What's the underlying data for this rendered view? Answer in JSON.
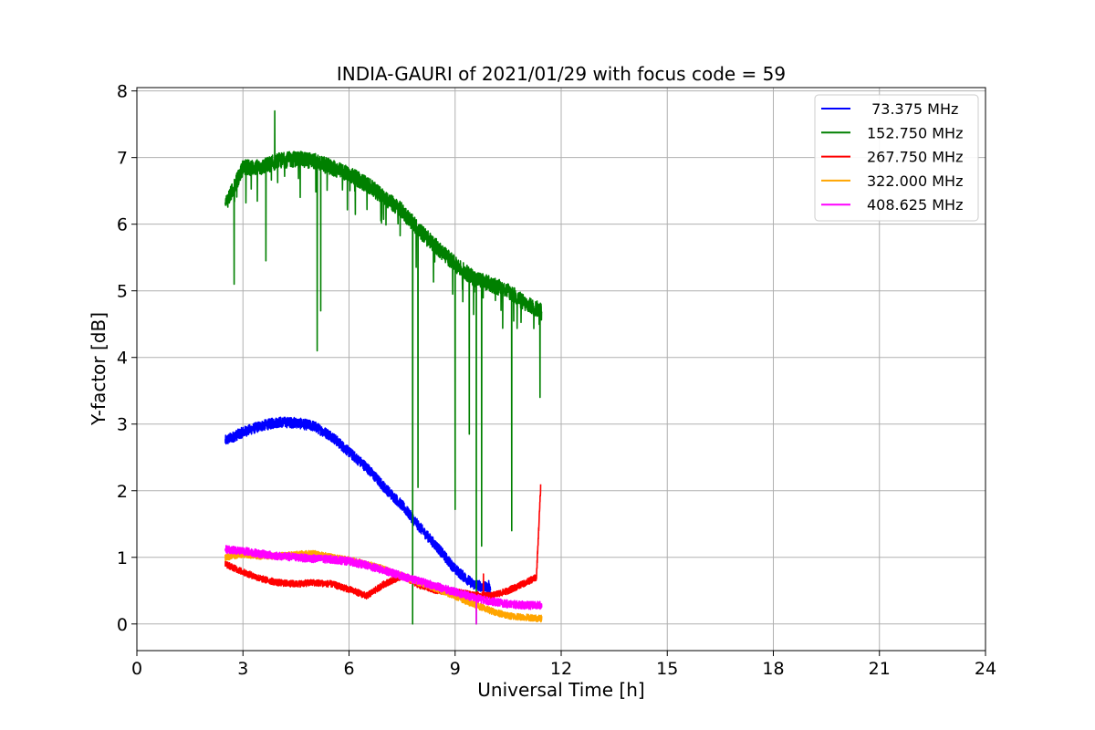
{
  "chart_data": {
    "type": "line",
    "title": "INDIA-GAURI of 2021/01/29 with focus code = 59",
    "xlabel": "Universal Time [h]",
    "ylabel": "Y-factor [dB]",
    "xlim": [
      0,
      24
    ],
    "ylim": [
      -0.4,
      8.05
    ],
    "xticks": [
      0,
      3,
      6,
      9,
      12,
      15,
      18,
      21,
      24
    ],
    "yticks": [
      0,
      1,
      2,
      3,
      4,
      5,
      6,
      7,
      8
    ],
    "grid": true,
    "legend_position": "top-right",
    "series": [
      {
        "name": " 73.375 MHz",
        "color": "#0000ff",
        "noise": 0.08,
        "x": [
          2.5,
          3.0,
          3.5,
          4.0,
          4.5,
          5.0,
          5.5,
          6.0,
          6.5,
          7.0,
          7.5,
          8.0,
          8.5,
          9.0,
          9.5,
          10.0
        ],
        "values": [
          2.75,
          2.88,
          2.97,
          3.03,
          3.02,
          2.97,
          2.82,
          2.58,
          2.35,
          2.05,
          1.78,
          1.45,
          1.15,
          0.82,
          0.6,
          0.53
        ]
      },
      {
        "name": "152.750 MHz",
        "color": "#008000",
        "noise": 0.12,
        "x": [
          2.5,
          2.7,
          3.0,
          3.5,
          4.0,
          4.5,
          5.0,
          5.5,
          6.0,
          6.5,
          7.0,
          7.5,
          8.0,
          8.5,
          9.0,
          9.5,
          10.0,
          10.5,
          11.0,
          11.45
        ],
        "values": [
          6.3,
          6.5,
          6.85,
          6.85,
          6.95,
          6.98,
          6.95,
          6.85,
          6.75,
          6.6,
          6.4,
          6.2,
          5.9,
          5.65,
          5.4,
          5.2,
          5.1,
          5.0,
          4.8,
          4.7
        ]
      },
      {
        "name": "267.750 MHz",
        "color": "#ff0000",
        "noise": 0.05,
        "x": [
          2.5,
          3.0,
          3.5,
          4.0,
          4.5,
          5.0,
          5.5,
          6.0,
          6.5,
          7.0,
          7.5,
          8.0,
          8.5,
          9.0,
          9.5,
          10.0,
          10.5,
          11.0,
          11.3,
          11.42
        ],
        "values": [
          0.9,
          0.78,
          0.68,
          0.62,
          0.6,
          0.62,
          0.6,
          0.52,
          0.42,
          0.6,
          0.72,
          0.58,
          0.5,
          0.48,
          0.44,
          0.42,
          0.5,
          0.62,
          0.7,
          2.05
        ]
      },
      {
        "name": "322.000 MHz",
        "color": "#ffa500",
        "noise": 0.05,
        "x": [
          2.5,
          3.0,
          3.5,
          4.0,
          4.5,
          5.0,
          5.5,
          6.0,
          6.5,
          7.0,
          7.5,
          8.0,
          8.5,
          9.0,
          9.5,
          10.0,
          10.5,
          11.0,
          11.45
        ],
        "values": [
          1.0,
          1.05,
          1.02,
          1.02,
          1.04,
          1.06,
          1.0,
          0.96,
          0.9,
          0.82,
          0.72,
          0.62,
          0.52,
          0.42,
          0.3,
          0.2,
          0.12,
          0.1,
          0.08
        ]
      },
      {
        "name": "408.625 MHz",
        "color": "#ff00ff",
        "noise": 0.06,
        "x": [
          2.5,
          3.0,
          3.5,
          4.0,
          4.5,
          5.0,
          5.5,
          6.0,
          6.5,
          7.0,
          7.5,
          8.0,
          8.5,
          9.0,
          9.5,
          10.0,
          10.5,
          11.0,
          11.45
        ],
        "values": [
          1.12,
          1.1,
          1.05,
          1.02,
          1.0,
          0.98,
          0.97,
          0.94,
          0.88,
          0.8,
          0.72,
          0.64,
          0.56,
          0.48,
          0.4,
          0.34,
          0.3,
          0.28,
          0.28
        ]
      }
    ],
    "spikes": [
      {
        "series": 1,
        "x": 2.75,
        "y": 5.1
      },
      {
        "series": 1,
        "x": 3.65,
        "y": 5.45
      },
      {
        "series": 1,
        "x": 3.9,
        "y": 7.7
      },
      {
        "series": 1,
        "x": 5.1,
        "y": 4.1
      },
      {
        "series": 1,
        "x": 5.2,
        "y": 4.7
      },
      {
        "series": 1,
        "x": 7.8,
        "y": 0.0
      },
      {
        "series": 1,
        "x": 7.95,
        "y": 2.05
      },
      {
        "series": 1,
        "x": 9.0,
        "y": 1.72
      },
      {
        "series": 1,
        "x": 9.4,
        "y": 2.85
      },
      {
        "series": 1,
        "x": 9.6,
        "y": 0.0
      },
      {
        "series": 1,
        "x": 9.75,
        "y": 1.17
      },
      {
        "series": 1,
        "x": 10.6,
        "y": 1.4
      },
      {
        "series": 1,
        "x": 11.4,
        "y": 3.4
      },
      {
        "series": 4,
        "x": 9.6,
        "y": 0.0
      },
      {
        "series": 0,
        "x": 9.95,
        "y": 0.65
      },
      {
        "series": 2,
        "x": 9.8,
        "y": 0.75
      }
    ]
  }
}
